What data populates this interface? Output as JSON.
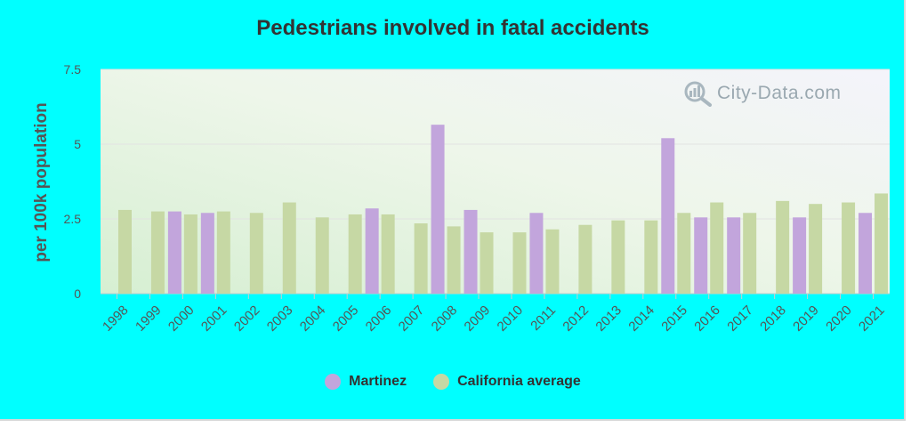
{
  "colors": {
    "background": "#00ffff",
    "martinez": "#c2a5dc",
    "california": "#c6d8a4",
    "text": "#333333"
  },
  "watermark": {
    "text": "City-Data.com"
  },
  "legend": [
    {
      "name": "Martinez",
      "color": "#c2a5dc"
    },
    {
      "name": "California average",
      "color": "#c6d8a4"
    }
  ],
  "chart_data": {
    "type": "bar",
    "title": "Pedestrians involved in fatal accidents",
    "xlabel": "",
    "ylabel": "per 100k population",
    "ylim": [
      0,
      7.5
    ],
    "yticks": [
      0,
      2.5,
      5,
      7.5
    ],
    "ytick_labels": [
      "0",
      "2.5",
      "5",
      "7.5"
    ],
    "grid": true,
    "legend_position": "bottom",
    "categories": [
      "1998",
      "1999",
      "2000",
      "2001",
      "2002",
      "2003",
      "2004",
      "2005",
      "2006",
      "2007",
      "2008",
      "2009",
      "2010",
      "2011",
      "2012",
      "2013",
      "2014",
      "2015",
      "2016",
      "2017",
      "2018",
      "2019",
      "2020",
      "2021"
    ],
    "series": [
      {
        "name": "Martinez",
        "values": [
          null,
          null,
          2.75,
          2.7,
          null,
          null,
          null,
          null,
          2.85,
          null,
          5.65,
          2.8,
          null,
          2.7,
          null,
          null,
          null,
          5.2,
          2.55,
          2.55,
          null,
          2.55,
          null,
          2.7
        ]
      },
      {
        "name": "California average",
        "values": [
          2.8,
          2.75,
          2.65,
          2.75,
          2.7,
          3.05,
          2.55,
          2.65,
          2.65,
          2.35,
          2.25,
          2.05,
          2.05,
          2.15,
          2.3,
          2.45,
          2.45,
          2.7,
          3.05,
          2.7,
          3.1,
          3.0,
          3.05,
          3.35
        ]
      }
    ]
  }
}
